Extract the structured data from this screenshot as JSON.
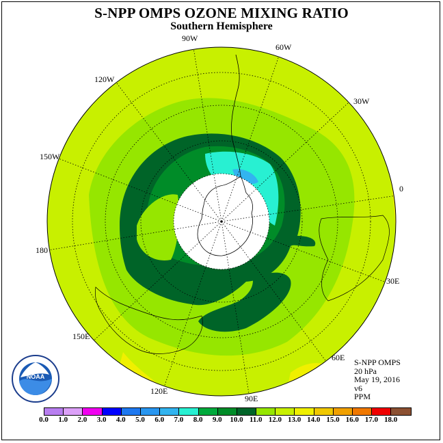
{
  "title": "S-NPP OMPS OZONE MIXING RATIO",
  "subtitle": "Southern Hemisphere",
  "longitude_labels": [
    "90W",
    "60W",
    "30W",
    "0",
    "30E",
    "60E",
    "90E",
    "120E",
    "150E",
    "180",
    "150W",
    "120W"
  ],
  "info": {
    "instrument": "S-NPP OMPS",
    "level": "20 hPa",
    "date": "May 19, 2016",
    "version": "v6",
    "units": "PPM"
  },
  "colorbar": {
    "ticks": [
      "0.0",
      "1.0",
      "2.0",
      "3.0",
      "4.0",
      "5.0",
      "6.0",
      "7.0",
      "8.0",
      "9.0",
      "10.0",
      "11.0",
      "12.0",
      "13.0",
      "14.0",
      "15.0",
      "16.0",
      "17.0",
      "18.0"
    ],
    "colors": [
      "#b87ef0",
      "#dca0f8",
      "#f000f0",
      "#0000ff",
      "#1e78f0",
      "#2896f0",
      "#32b4f0",
      "#28f0d2",
      "#00aa3c",
      "#008c28",
      "#006428",
      "#96e600",
      "#c8f000",
      "#f0f000",
      "#f0c800",
      "#f0a000",
      "#f07800",
      "#f00000",
      "#8c5032"
    ]
  },
  "logo_text": "NOAA"
}
